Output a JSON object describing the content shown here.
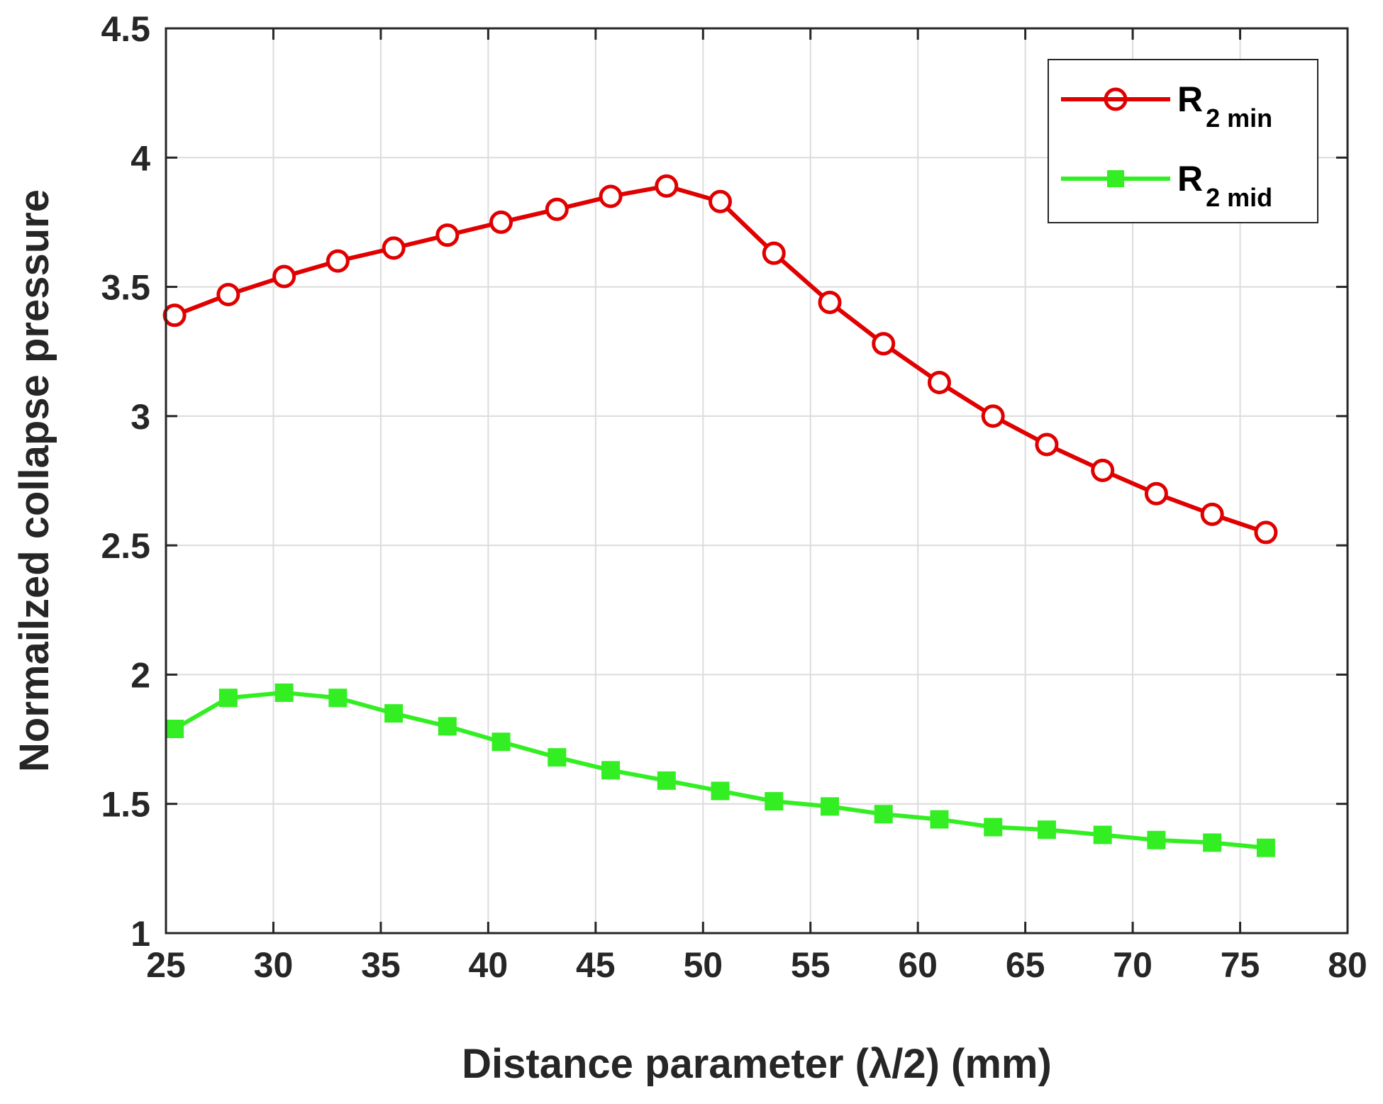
{
  "chart_data": {
    "type": "line",
    "title": "",
    "xlabel": "Distance parameter (λ/2) (mm)",
    "ylabel": "Normailzed collapse pressure",
    "xlim": [
      25,
      80
    ],
    "ylim": [
      1,
      4.5
    ],
    "xticks": [
      "25",
      "30",
      "35",
      "40",
      "45",
      "50",
      "55",
      "60",
      "65",
      "70",
      "75",
      "80"
    ],
    "yticks": [
      "1",
      "1.5",
      "2",
      "2.5",
      "3",
      "3.5",
      "4",
      "4.5"
    ],
    "grid": true,
    "legend_position": "top-right",
    "x": [
      25.4,
      27.9,
      30.5,
      33.0,
      35.6,
      38.1,
      40.6,
      43.2,
      45.7,
      48.3,
      50.8,
      53.3,
      55.9,
      58.4,
      61.0,
      63.5,
      66.0,
      68.6,
      71.1,
      73.7,
      76.2
    ],
    "series": [
      {
        "name": "R",
        "name_sub": "2 min",
        "color": "#e00000",
        "marker": "circle-open",
        "values": [
          3.39,
          3.47,
          3.54,
          3.6,
          3.65,
          3.7,
          3.75,
          3.8,
          3.85,
          3.89,
          3.83,
          3.63,
          3.44,
          3.28,
          3.13,
          3.0,
          2.89,
          2.79,
          2.7,
          2.62,
          2.55
        ]
      },
      {
        "name": "R",
        "name_sub": "2 mid",
        "color": "#33ee22",
        "marker": "square-filled",
        "values": [
          1.79,
          1.91,
          1.93,
          1.91,
          1.85,
          1.8,
          1.74,
          1.68,
          1.63,
          1.59,
          1.55,
          1.51,
          1.49,
          1.46,
          1.44,
          1.41,
          1.4,
          1.38,
          1.36,
          1.35,
          1.33
        ]
      }
    ]
  }
}
